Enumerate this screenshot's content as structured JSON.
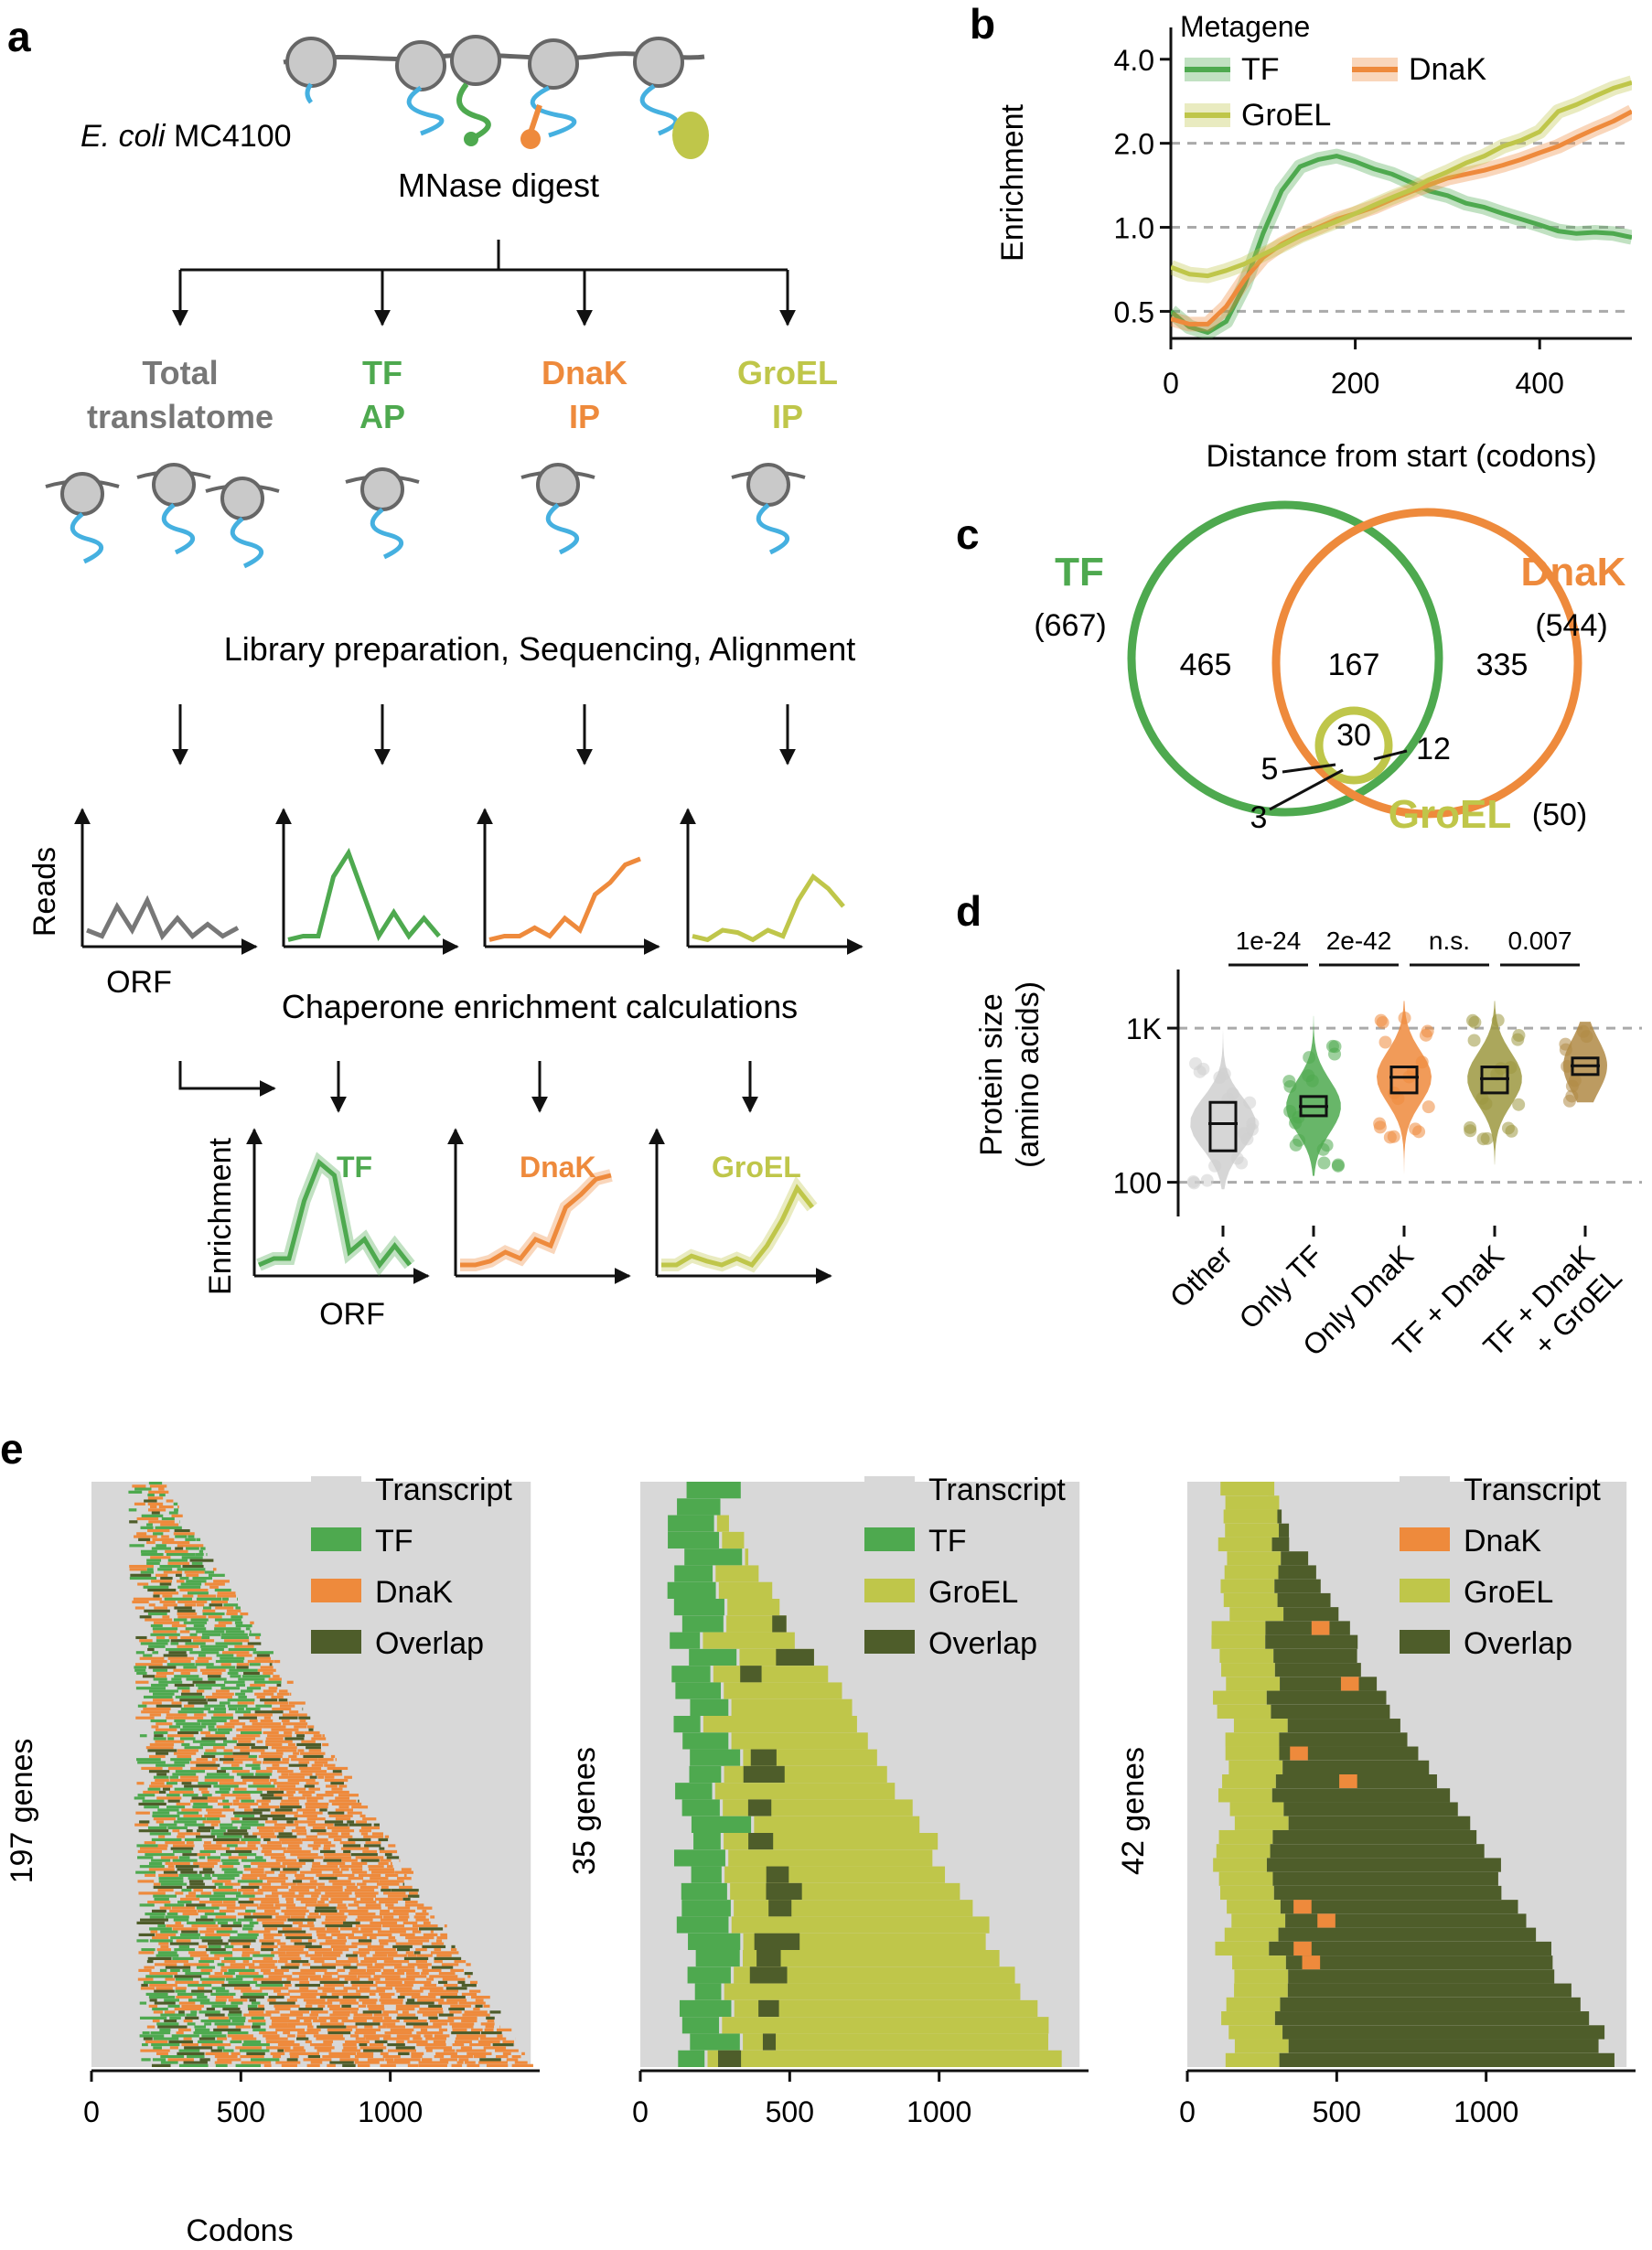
{
  "colors": {
    "tf": "#4ea94f",
    "tf_dark": "#3c8f3e",
    "dnak": "#ee8a3c",
    "groel": "#bfc64a",
    "groel_dark": "#8d8c3c",
    "overlap": "#4e5d2a",
    "gray": "#777777",
    "light_gray": "#d8d8d8",
    "protein": "#45b0e0",
    "ribosome": "#c9c9c9",
    "dash": "#aaaaaa"
  },
  "panel_a": {
    "label": "a",
    "strain": "E. coli",
    "strain_name": "MC4100",
    "digest": "MNase digest",
    "branches": [
      {
        "line1": "Total",
        "line2": "translatome",
        "color": "#777777"
      },
      {
        "line1": "TF",
        "line2": "AP",
        "color": "#4ea94f"
      },
      {
        "line1": "DnaK",
        "line2": "IP",
        "color": "#ee8a3c"
      },
      {
        "line1": "GroEL",
        "line2": "IP",
        "color": "#bfc64a"
      }
    ],
    "library": "Library preparation, Sequencing, Alignment",
    "reads_ylabel": "Reads",
    "reads_xlabel": "ORF",
    "enrichment_calc": "Chaperone enrichment calculations",
    "enrich_ylabel": "Enrichment",
    "enrich_xlabel": "ORF",
    "enrich_labels": [
      "TF",
      "DnaK",
      "GroEL"
    ]
  },
  "panel_b": {
    "label": "b",
    "legend_title": "Metagene",
    "ylabel": "Enrichment",
    "xlabel": "Distance from start (codons)"
  },
  "panel_c": {
    "label": "c",
    "tf": {
      "name": "TF",
      "total": "(667)"
    },
    "dnak": {
      "name": "DnaK",
      "total": "(544)"
    },
    "groel": {
      "name": "GroEL",
      "total": "(50)"
    },
    "regions": {
      "tf_only": "465",
      "tf_dnak": "167",
      "dnak_only": "335",
      "all_three": "30",
      "dnak_groel": "12",
      "tf_groel": "5",
      "groel_only": "3"
    }
  },
  "panel_d": {
    "label": "d",
    "ylabel1": "Protein size",
    "ylabel2": "(amino acids)"
  },
  "panel_e": {
    "label": "e",
    "xlabel": "Codons"
  },
  "chart_data": [
    {
      "id": "b",
      "type": "line",
      "title": "Metagene",
      "xlabel": "Distance from start (codons)",
      "ylabel": "Enrichment",
      "scale_y": "log",
      "xlim": [
        0,
        500
      ],
      "ylim": [
        0.4,
        5.2
      ],
      "xticks": [
        0,
        200,
        400
      ],
      "yticks": [
        0.5,
        1.0,
        2.0,
        4.0
      ],
      "ytick_labels": [
        "0.5",
        "1.0",
        "2.0",
        "4.0"
      ],
      "hlines": [
        0.5,
        1.0,
        2.0
      ],
      "legend_position": "top-left",
      "series": [
        {
          "name": "TF",
          "color": "#4ea94f",
          "x": [
            0,
            20,
            40,
            60,
            80,
            100,
            120,
            140,
            160,
            180,
            200,
            220,
            240,
            260,
            280,
            300,
            320,
            340,
            360,
            380,
            400,
            420,
            440,
            460,
            480,
            500
          ],
          "y": [
            0.5,
            0.44,
            0.42,
            0.46,
            0.62,
            0.95,
            1.35,
            1.65,
            1.75,
            1.8,
            1.72,
            1.62,
            1.55,
            1.45,
            1.35,
            1.3,
            1.22,
            1.18,
            1.12,
            1.07,
            1.02,
            0.97,
            0.95,
            0.96,
            0.95,
            0.92
          ]
        },
        {
          "name": "DnaK",
          "color": "#ee8a3c",
          "x": [
            0,
            20,
            40,
            60,
            80,
            100,
            120,
            140,
            160,
            180,
            200,
            220,
            240,
            260,
            280,
            300,
            320,
            340,
            360,
            380,
            400,
            420,
            440,
            460,
            480,
            500
          ],
          "y": [
            0.47,
            0.45,
            0.45,
            0.52,
            0.65,
            0.78,
            0.87,
            0.94,
            1.0,
            1.07,
            1.12,
            1.18,
            1.26,
            1.34,
            1.42,
            1.5,
            1.55,
            1.6,
            1.67,
            1.75,
            1.85,
            1.95,
            2.1,
            2.25,
            2.4,
            2.6
          ]
        },
        {
          "name": "GroEL",
          "color": "#bfc64a",
          "x": [
            0,
            20,
            40,
            60,
            80,
            100,
            120,
            140,
            160,
            180,
            200,
            220,
            240,
            260,
            280,
            300,
            320,
            340,
            360,
            380,
            400,
            420,
            440,
            460,
            480,
            500
          ],
          "y": [
            0.72,
            0.68,
            0.67,
            0.7,
            0.74,
            0.8,
            0.86,
            0.93,
            0.99,
            1.05,
            1.12,
            1.2,
            1.28,
            1.36,
            1.48,
            1.58,
            1.7,
            1.8,
            1.95,
            2.05,
            2.2,
            2.6,
            2.75,
            2.95,
            3.15,
            3.3
          ]
        }
      ]
    },
    {
      "id": "d",
      "type": "violin",
      "ylabel": "Protein size (amino acids)",
      "scale_y": "log",
      "ylim": [
        60,
        2400
      ],
      "yticks": [
        100,
        1000
      ],
      "ytick_labels": [
        "100",
        "1K"
      ],
      "categories": [
        "Other",
        "Only TF",
        "Only DnaK",
        "TF + DnaK",
        "TF + DnaK + GroEL"
      ],
      "category_labels": [
        [
          "Other"
        ],
        [
          "Only TF"
        ],
        [
          "Only DnaK"
        ],
        [
          "TF + DnaK"
        ],
        [
          "TF + DnaK",
          "+ GroEL"
        ]
      ],
      "colors": [
        "#cfcfcf",
        "#4ea94f",
        "#ee8a3c",
        "#9c9840",
        "#b08a45"
      ],
      "medians": [
        240,
        310,
        480,
        470,
        570
      ],
      "q1": [
        160,
        270,
        380,
        380,
        500
      ],
      "q3": [
        330,
        360,
        560,
        560,
        640
      ],
      "comparisons": [
        {
          "pair": [
            0,
            1
          ],
          "p": "1e-24"
        },
        {
          "pair": [
            1,
            2
          ],
          "p": "2e-42"
        },
        {
          "pair": [
            2,
            3
          ],
          "p": "n.s."
        },
        {
          "pair": [
            3,
            4
          ],
          "p": "0.007"
        }
      ]
    },
    {
      "id": "e1",
      "type": "sorted-bars",
      "xlabel": "Codons",
      "ylabel": "197 genes",
      "xlim": [
        0,
        1500
      ],
      "xticks": [
        0,
        500,
        1000
      ],
      "gene_count": 197,
      "legend": [
        {
          "name": "Transcript",
          "color": "#d8d8d8"
        },
        {
          "name": "TF",
          "color": "#4ea94f"
        },
        {
          "name": "DnaK",
          "color": "#ee8a3c"
        },
        {
          "name": "Overlap",
          "color": "#4e5d2a"
        }
      ]
    },
    {
      "id": "e2",
      "type": "sorted-bars",
      "ylabel": "35 genes",
      "xlim": [
        0,
        1500
      ],
      "xticks": [
        0,
        500,
        1000
      ],
      "gene_count": 35,
      "legend": [
        {
          "name": "Transcript",
          "color": "#d8d8d8"
        },
        {
          "name": "TF",
          "color": "#4ea94f"
        },
        {
          "name": "GroEL",
          "color": "#bfc64a"
        },
        {
          "name": "Overlap",
          "color": "#4e5d2a"
        }
      ]
    },
    {
      "id": "e3",
      "type": "sorted-bars",
      "ylabel": "42 genes",
      "xlim": [
        0,
        1500
      ],
      "xticks": [
        0,
        500,
        1000
      ],
      "gene_count": 42,
      "legend": [
        {
          "name": "Transcript",
          "color": "#d8d8d8"
        },
        {
          "name": "DnaK",
          "color": "#ee8a3c"
        },
        {
          "name": "GroEL",
          "color": "#bfc64a"
        },
        {
          "name": "Overlap",
          "color": "#4e5d2a"
        }
      ]
    }
  ]
}
